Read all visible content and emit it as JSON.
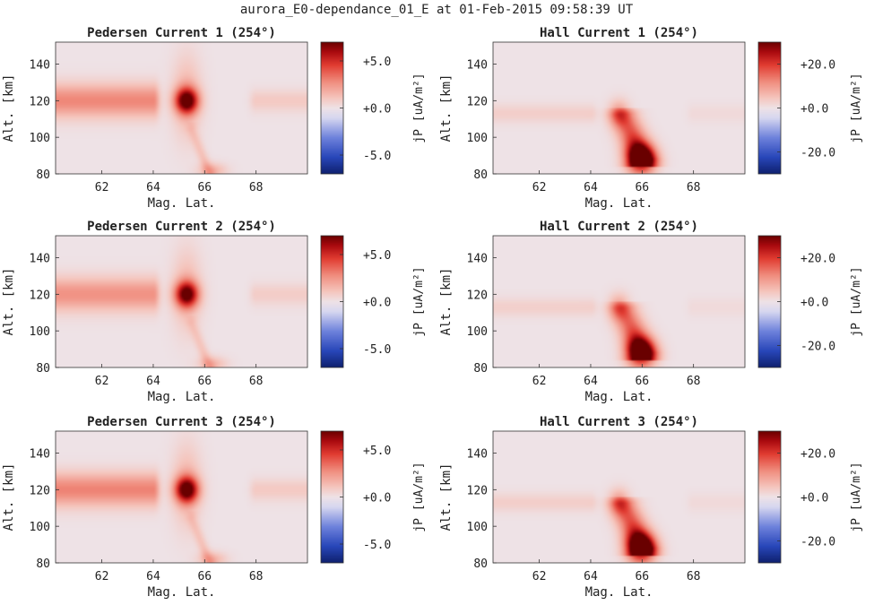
{
  "figure": {
    "suptitle": "aurora_E0-dependance_01_E at 01-Feb-2015 09:58:39 UT"
  },
  "chart_data": [
    {
      "type": "heatmap",
      "title": "Pedersen Current 1 (254°)",
      "xlabel": "Mag. Lat.",
      "ylabel": "Alt. [km]",
      "xlim": [
        60.2,
        70.0
      ],
      "ylim": [
        80,
        152
      ],
      "xticks": [
        "62",
        "64",
        "66",
        "68"
      ],
      "yticks": [
        "80",
        "100",
        "120",
        "140"
      ],
      "colorbar": {
        "label": "jP [uA/m²]",
        "range": [
          -7.0,
          7.0
        ],
        "ticks": [
          "+5.0",
          "+0.0",
          "-5.0"
        ],
        "cmap": "red-white-blue"
      },
      "features": [
        {
          "kind": "band",
          "lat": [
            60.2,
            64.0
          ],
          "alt_center": 120,
          "alt_halfwidth": 9,
          "value": 2.9
        },
        {
          "kind": "band",
          "lat": [
            68.0,
            70.0
          ],
          "alt_center": 120,
          "alt_halfwidth": 6,
          "value": 0.9
        },
        {
          "kind": "peak",
          "lat": 65.3,
          "alt": 120,
          "lat_sigma": 0.45,
          "alt_sigma": 7,
          "value": 7.0
        },
        {
          "kind": "plume",
          "lat": 65.3,
          "alt": 122,
          "lat_sigma": 0.55,
          "alt_sigma": 22,
          "value": 1.6
        },
        {
          "kind": "tail",
          "lat_top": 65.5,
          "alt_top": 104,
          "lat_bottom": 66.2,
          "alt_bottom": 80,
          "width": 0.22,
          "value": 1.4
        },
        {
          "kind": "peak",
          "lat": 66.3,
          "alt": 82,
          "lat_sigma": 0.55,
          "alt_sigma": 4,
          "value": 1.6
        }
      ]
    },
    {
      "type": "heatmap",
      "title": "Hall Current 1 (254°)",
      "xlabel": "Mag. Lat.",
      "ylabel": "Alt. [km]",
      "xlim": [
        60.2,
        70.0
      ],
      "ylim": [
        80,
        152
      ],
      "xticks": [
        "62",
        "64",
        "66",
        "68"
      ],
      "yticks": [
        "80",
        "100",
        "120",
        "140"
      ],
      "colorbar": {
        "label": "jP [uA/m²]",
        "range": [
          -30.0,
          30.0
        ],
        "ticks": [
          "+20.0",
          "+0.0",
          "-20.0"
        ],
        "cmap": "red-white-blue"
      },
      "features": [
        {
          "kind": "band",
          "lat": [
            60.2,
            64.0
          ],
          "alt_center": 113,
          "alt_halfwidth": 5,
          "value": 3.2
        },
        {
          "kind": "band",
          "lat": [
            68.0,
            70.0
          ],
          "alt_center": 113,
          "alt_halfwidth": 5,
          "value": 1.4
        },
        {
          "kind": "peak",
          "lat": 65.1,
          "alt": 113,
          "lat_sigma": 0.4,
          "alt_sigma": 7,
          "value": 11
        },
        {
          "kind": "tail",
          "lat_top": 65.3,
          "alt_top": 112,
          "lat_bottom": 66.0,
          "alt_bottom": 88,
          "width": 0.55,
          "value": 24
        },
        {
          "kind": "peak",
          "lat": 65.95,
          "alt": 88,
          "lat_sigma": 0.55,
          "alt_sigma": 8,
          "value": 30
        }
      ]
    },
    {
      "type": "heatmap",
      "title": "Pedersen Current 2 (254°)",
      "xlabel": "Mag. Lat.",
      "ylabel": "Alt. [km]",
      "xlim": [
        60.2,
        70.0
      ],
      "ylim": [
        80,
        152
      ],
      "xticks": [
        "62",
        "64",
        "66",
        "68"
      ],
      "yticks": [
        "80",
        "100",
        "120",
        "140"
      ],
      "colorbar": {
        "label": "jP [uA/m²]",
        "range": [
          -7.0,
          7.0
        ],
        "ticks": [
          "+5.0",
          "+0.0",
          "-5.0"
        ],
        "cmap": "red-white-blue"
      },
      "features": [
        {
          "kind": "band",
          "lat": [
            60.2,
            64.0
          ],
          "alt_center": 120,
          "alt_halfwidth": 9,
          "value": 2.6
        },
        {
          "kind": "band",
          "lat": [
            68.0,
            70.0
          ],
          "alt_center": 120,
          "alt_halfwidth": 6,
          "value": 0.8
        },
        {
          "kind": "peak",
          "lat": 65.3,
          "alt": 120,
          "lat_sigma": 0.45,
          "alt_sigma": 7,
          "value": 6.6
        },
        {
          "kind": "plume",
          "lat": 65.3,
          "alt": 122,
          "lat_sigma": 0.55,
          "alt_sigma": 22,
          "value": 1.5
        },
        {
          "kind": "tail",
          "lat_top": 65.5,
          "alt_top": 104,
          "lat_bottom": 66.2,
          "alt_bottom": 80,
          "width": 0.22,
          "value": 1.3
        },
        {
          "kind": "peak",
          "lat": 66.3,
          "alt": 82,
          "lat_sigma": 0.55,
          "alt_sigma": 4,
          "value": 1.5
        }
      ]
    },
    {
      "type": "heatmap",
      "title": "Hall Current 2 (254°)",
      "xlabel": "Mag. Lat.",
      "ylabel": "Alt. [km]",
      "xlim": [
        60.2,
        70.0
      ],
      "ylim": [
        80,
        152
      ],
      "xticks": [
        "62",
        "64",
        "66",
        "68"
      ],
      "yticks": [
        "80",
        "100",
        "120",
        "140"
      ],
      "colorbar": {
        "label": "jP [uA/m²]",
        "range": [
          -30.0,
          30.0
        ],
        "ticks": [
          "+20.0",
          "+0.0",
          "-20.0"
        ],
        "cmap": "red-white-blue"
      },
      "features": [
        {
          "kind": "band",
          "lat": [
            60.2,
            64.0
          ],
          "alt_center": 113,
          "alt_halfwidth": 5,
          "value": 3.0
        },
        {
          "kind": "band",
          "lat": [
            68.0,
            70.0
          ],
          "alt_center": 113,
          "alt_halfwidth": 5,
          "value": 1.3
        },
        {
          "kind": "peak",
          "lat": 65.1,
          "alt": 113,
          "lat_sigma": 0.4,
          "alt_sigma": 7,
          "value": 10
        },
        {
          "kind": "tail",
          "lat_top": 65.3,
          "alt_top": 112,
          "lat_bottom": 66.0,
          "alt_bottom": 88,
          "width": 0.55,
          "value": 22
        },
        {
          "kind": "peak",
          "lat": 65.95,
          "alt": 88,
          "lat_sigma": 0.55,
          "alt_sigma": 8,
          "value": 28
        }
      ]
    },
    {
      "type": "heatmap",
      "title": "Pedersen Current 3 (254°)",
      "xlabel": "Mag. Lat.",
      "ylabel": "Alt. [km]",
      "xlim": [
        60.2,
        70.0
      ],
      "ylim": [
        80,
        152
      ],
      "xticks": [
        "62",
        "64",
        "66",
        "68"
      ],
      "yticks": [
        "80",
        "100",
        "120",
        "140"
      ],
      "colorbar": {
        "label": "jP [uA/m²]",
        "range": [
          -7.0,
          7.0
        ],
        "ticks": [
          "+5.0",
          "+0.0",
          "-5.0"
        ],
        "cmap": "red-white-blue"
      },
      "features": [
        {
          "kind": "band",
          "lat": [
            60.2,
            64.0
          ],
          "alt_center": 120,
          "alt_halfwidth": 9,
          "value": 3.0
        },
        {
          "kind": "band",
          "lat": [
            68.0,
            70.0
          ],
          "alt_center": 120,
          "alt_halfwidth": 6,
          "value": 0.9
        },
        {
          "kind": "peak",
          "lat": 65.3,
          "alt": 120,
          "lat_sigma": 0.45,
          "alt_sigma": 7,
          "value": 7.0
        },
        {
          "kind": "plume",
          "lat": 65.3,
          "alt": 122,
          "lat_sigma": 0.55,
          "alt_sigma": 22,
          "value": 1.6
        },
        {
          "kind": "tail",
          "lat_top": 65.5,
          "alt_top": 104,
          "lat_bottom": 66.2,
          "alt_bottom": 80,
          "width": 0.22,
          "value": 1.4
        },
        {
          "kind": "peak",
          "lat": 66.3,
          "alt": 82,
          "lat_sigma": 0.55,
          "alt_sigma": 4,
          "value": 1.6
        }
      ]
    },
    {
      "type": "heatmap",
      "title": "Hall Current 3 (254°)",
      "xlabel": "Mag. Lat.",
      "ylabel": "Alt. [km]",
      "xlim": [
        60.2,
        70.0
      ],
      "ylim": [
        80,
        152
      ],
      "xticks": [
        "62",
        "64",
        "66",
        "68"
      ],
      "yticks": [
        "80",
        "100",
        "120",
        "140"
      ],
      "colorbar": {
        "label": "jP [uA/m²]",
        "range": [
          -30.0,
          30.0
        ],
        "ticks": [
          "+20.0",
          "+0.0",
          "-20.0"
        ],
        "cmap": "red-white-blue"
      },
      "features": [
        {
          "kind": "band",
          "lat": [
            60.2,
            64.0
          ],
          "alt_center": 113,
          "alt_halfwidth": 5,
          "value": 3.2
        },
        {
          "kind": "band",
          "lat": [
            68.0,
            70.0
          ],
          "alt_center": 113,
          "alt_halfwidth": 5,
          "value": 1.4
        },
        {
          "kind": "peak",
          "lat": 65.1,
          "alt": 113,
          "lat_sigma": 0.4,
          "alt_sigma": 7,
          "value": 11
        },
        {
          "kind": "tail",
          "lat_top": 65.3,
          "alt_top": 112,
          "lat_bottom": 66.0,
          "alt_bottom": 88,
          "width": 0.55,
          "value": 24
        },
        {
          "kind": "peak",
          "lat": 65.95,
          "alt": 88,
          "lat_sigma": 0.55,
          "alt_sigma": 8,
          "value": 30
        }
      ]
    }
  ]
}
